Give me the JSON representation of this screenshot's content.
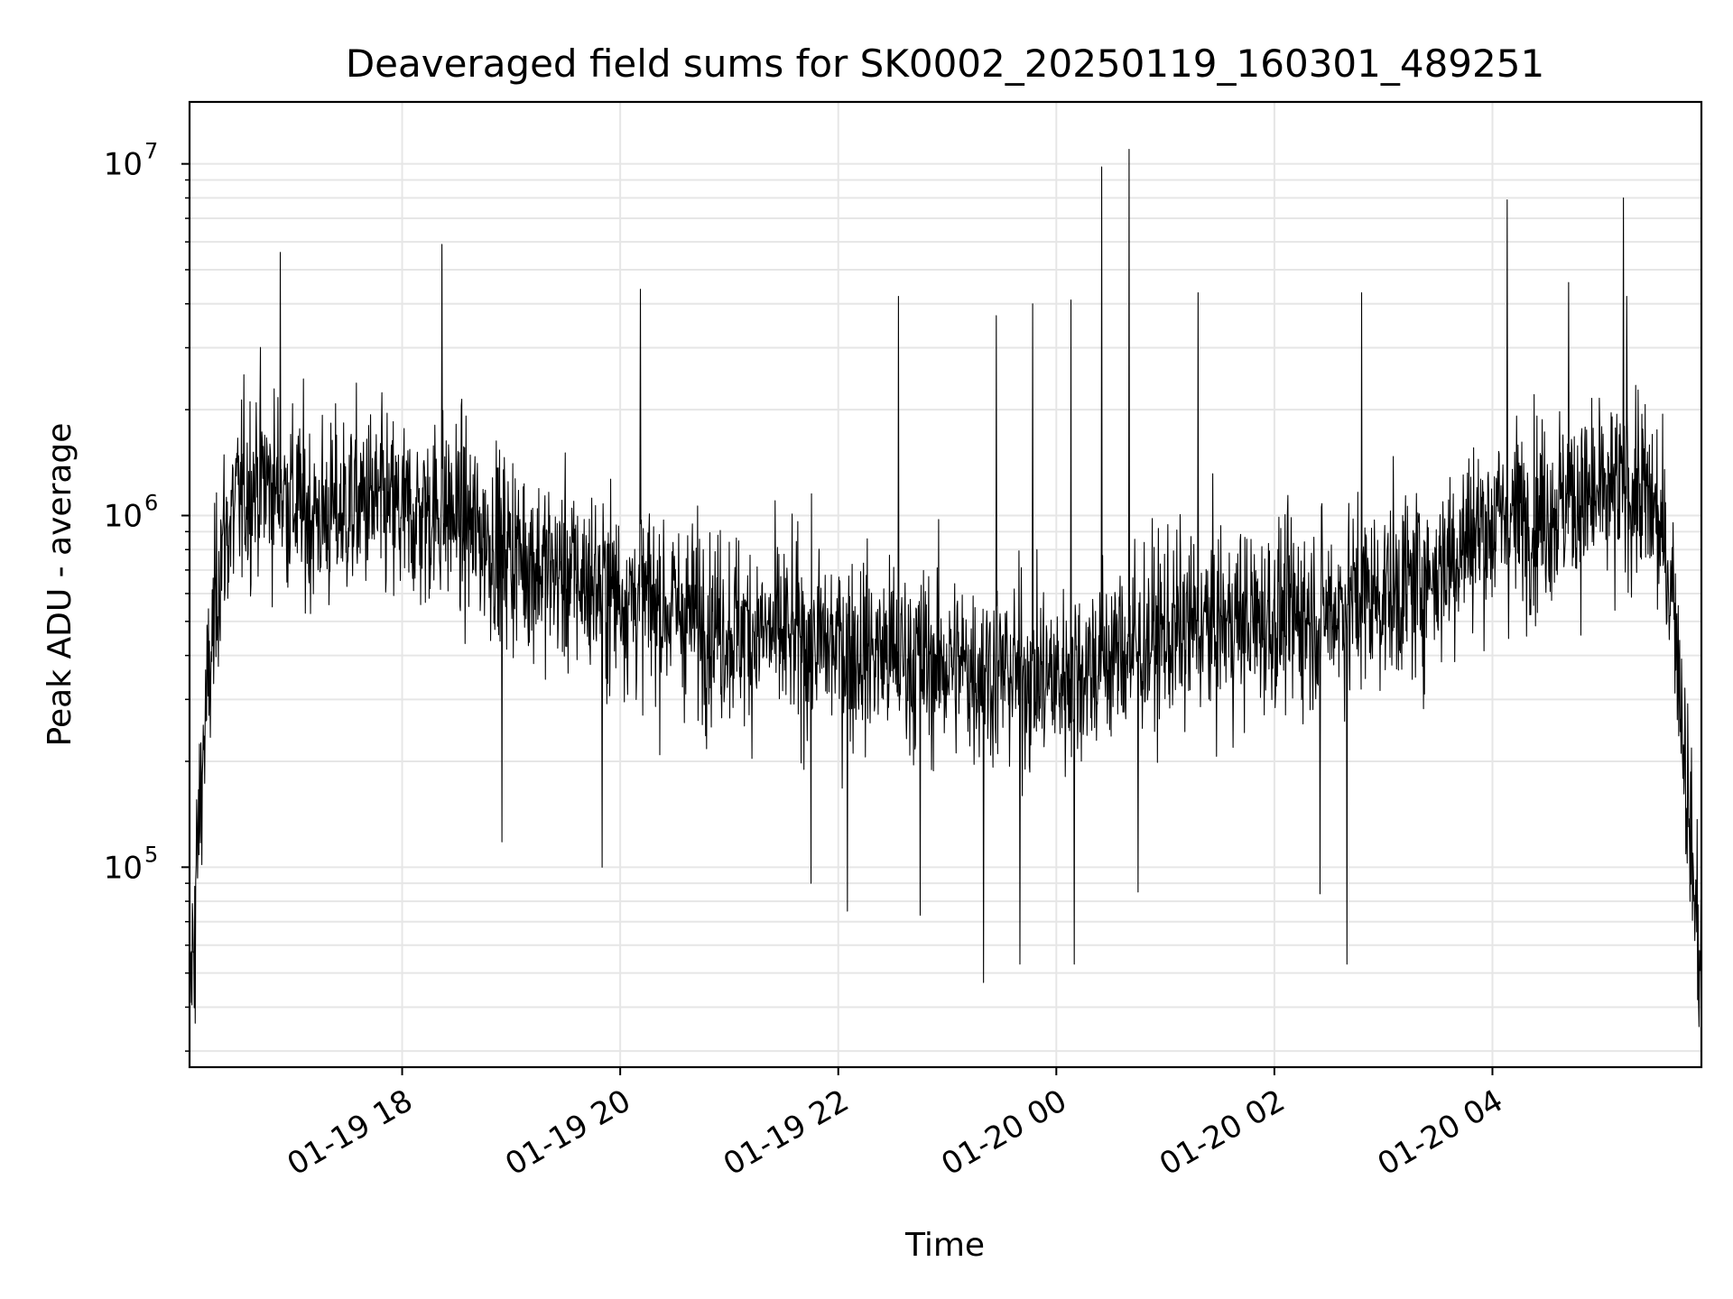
{
  "chart_data": {
    "type": "line",
    "title": "Deaveraged field sums for SK0002_20250119_160301_489251",
    "xlabel": "Time",
    "ylabel": "Peak ADU - average",
    "yscale": "log",
    "xlim": [
      "2025-01-19 16:03",
      "2025-01-20 05:55"
    ],
    "ylim": [
      27000,
      15000000
    ],
    "grid": true,
    "line_color": "#000000",
    "grid_color": "#e6e6e6",
    "x_ticks": [
      {
        "value": "2025-01-19 18:00",
        "label": "01-19 18"
      },
      {
        "value": "2025-01-19 20:00",
        "label": "01-19 20"
      },
      {
        "value": "2025-01-19 22:00",
        "label": "01-19 22"
      },
      {
        "value": "2025-01-20 00:00",
        "label": "01-20 00"
      },
      {
        "value": "2025-01-20 02:00",
        "label": "01-20 02"
      },
      {
        "value": "2025-01-20 04:00",
        "label": "01-20 04"
      }
    ],
    "y_ticks": [
      {
        "value": 100000,
        "base": "10",
        "exp": "5"
      },
      {
        "value": 1000000,
        "base": "10",
        "exp": "6"
      },
      {
        "value": 10000000,
        "base": "10",
        "exp": "7"
      }
    ],
    "series": [
      {
        "color": "#000000",
        "x": [
          "2025-01-19 16:03",
          "2025-01-19 16:10",
          "2025-01-19 16:20",
          "2025-01-19 16:30",
          "2025-01-19 16:40",
          "2025-01-19 16:50",
          "2025-01-19 17:00",
          "2025-01-19 17:10",
          "2025-01-19 17:20",
          "2025-01-19 17:30",
          "2025-01-19 17:40",
          "2025-01-19 17:50",
          "2025-01-19 18:00",
          "2025-01-19 18:10",
          "2025-01-19 18:20",
          "2025-01-19 18:30",
          "2025-01-19 18:40",
          "2025-01-19 18:50",
          "2025-01-19 19:00",
          "2025-01-19 19:10",
          "2025-01-19 19:20",
          "2025-01-19 19:30",
          "2025-01-19 19:40",
          "2025-01-19 19:50",
          "2025-01-19 20:00",
          "2025-01-19 20:10",
          "2025-01-19 20:20",
          "2025-01-19 20:30",
          "2025-01-19 20:40",
          "2025-01-19 20:50",
          "2025-01-19 21:00",
          "2025-01-19 21:10",
          "2025-01-19 21:20",
          "2025-01-19 21:30",
          "2025-01-19 21:40",
          "2025-01-19 21:50",
          "2025-01-19 22:00",
          "2025-01-19 22:10",
          "2025-01-19 22:20",
          "2025-01-19 22:30",
          "2025-01-19 22:40",
          "2025-01-19 22:50",
          "2025-01-19 23:00",
          "2025-01-19 23:10",
          "2025-01-19 23:20",
          "2025-01-19 23:30",
          "2025-01-19 23:40",
          "2025-01-19 23:50",
          "2025-01-20 00:00",
          "2025-01-20 00:10",
          "2025-01-20 00:20",
          "2025-01-20 00:30",
          "2025-01-20 00:40",
          "2025-01-20 00:50",
          "2025-01-20 01:00",
          "2025-01-20 01:10",
          "2025-01-20 01:20",
          "2025-01-20 01:30",
          "2025-01-20 01:40",
          "2025-01-20 01:50",
          "2025-01-20 02:00",
          "2025-01-20 02:10",
          "2025-01-20 02:20",
          "2025-01-20 02:30",
          "2025-01-20 02:40",
          "2025-01-20 02:50",
          "2025-01-20 03:00",
          "2025-01-20 03:10",
          "2025-01-20 03:20",
          "2025-01-20 03:30",
          "2025-01-20 03:40",
          "2025-01-20 03:50",
          "2025-01-20 04:00",
          "2025-01-20 04:10",
          "2025-01-20 04:20",
          "2025-01-20 04:30",
          "2025-01-20 04:40",
          "2025-01-20 04:50",
          "2025-01-20 05:00",
          "2025-01-20 05:10",
          "2025-01-20 05:20",
          "2025-01-20 05:30",
          "2025-01-20 05:40",
          "2025-01-20 05:50",
          "2025-01-20 05:55"
        ],
        "y": [
          40000,
          200000,
          800000,
          1100000,
          1300000,
          1200000,
          1100000,
          1000000,
          1000000,
          1050000,
          1100000,
          1050000,
          1000000,
          1000000,
          1050000,
          1000000,
          900000,
          850000,
          800000,
          750000,
          700000,
          680000,
          650000,
          630000,
          600000,
          580000,
          560000,
          540000,
          520000,
          500000,
          480000,
          470000,
          460000,
          450000,
          440000,
          430000,
          430000,
          420000,
          410000,
          400000,
          390000,
          380000,
          380000,
          370000,
          370000,
          360000,
          360000,
          350000,
          340000,
          360000,
          380000,
          400000,
          420000,
          440000,
          460000,
          470000,
          480000,
          490000,
          500000,
          500000,
          510000,
          520000,
          530000,
          540000,
          560000,
          580000,
          600000,
          620000,
          650000,
          700000,
          800000,
          900000,
          950000,
          1000000,
          1000000,
          1050000,
          1100000,
          1100000,
          1100000,
          1150000,
          1200000,
          1000000,
          600000,
          100000,
          50000
        ],
        "peaks": [
          {
            "x": "2025-01-19 16:53",
            "y": 5600000
          },
          {
            "x": "2025-01-19 18:22",
            "y": 5900000
          },
          {
            "x": "2025-01-19 20:11",
            "y": 4400000
          },
          {
            "x": "2025-01-19 22:33",
            "y": 4200000
          },
          {
            "x": "2025-01-19 23:27",
            "y": 3700000
          },
          {
            "x": "2025-01-19 23:47",
            "y": 4000000
          },
          {
            "x": "2025-01-20 00:08",
            "y": 4100000
          },
          {
            "x": "2025-01-20 00:25",
            "y": 9800000
          },
          {
            "x": "2025-01-20 00:40",
            "y": 11000000
          },
          {
            "x": "2025-01-20 01:18",
            "y": 4300000
          },
          {
            "x": "2025-01-20 02:48",
            "y": 4300000
          },
          {
            "x": "2025-01-20 04:08",
            "y": 7900000
          },
          {
            "x": "2025-01-20 04:42",
            "y": 4600000
          },
          {
            "x": "2025-01-20 05:12",
            "y": 8000000
          },
          {
            "x": "2025-01-20 05:14",
            "y": 4200000
          }
        ],
        "dips": [
          {
            "x": "2025-01-19 16:06",
            "y": 36000
          },
          {
            "x": "2025-01-19 18:55",
            "y": 118000
          },
          {
            "x": "2025-01-19 19:50",
            "y": 100000
          },
          {
            "x": "2025-01-19 21:45",
            "y": 90000
          },
          {
            "x": "2025-01-19 22:05",
            "y": 75000
          },
          {
            "x": "2025-01-19 22:45",
            "y": 73000
          },
          {
            "x": "2025-01-19 23:20",
            "y": 47000
          },
          {
            "x": "2025-01-19 23:40",
            "y": 53000
          },
          {
            "x": "2025-01-20 00:10",
            "y": 53000
          },
          {
            "x": "2025-01-20 00:45",
            "y": 85000
          },
          {
            "x": "2025-01-20 02:25",
            "y": 84000
          },
          {
            "x": "2025-01-20 02:40",
            "y": 53000
          },
          {
            "x": "2025-01-20 05:53",
            "y": 42000
          }
        ]
      }
    ]
  }
}
